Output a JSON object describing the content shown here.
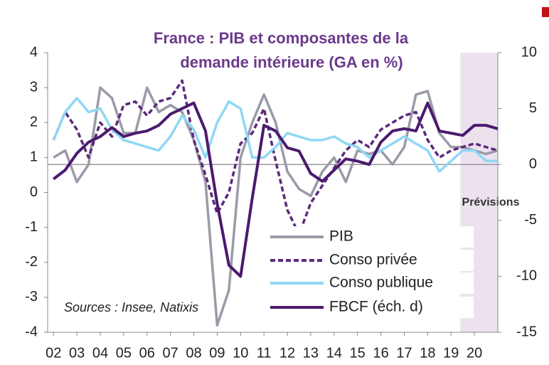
{
  "chart_data": {
    "type": "line",
    "title": [
      "France : PIB et composantes de la",
      "demande intérieure  (GA en %)"
    ],
    "annotations": {
      "sources": "Sources : Insee, Natixis",
      "forecast": "Prévisions"
    },
    "forecast_span": [
      2019.4,
      2021
    ],
    "x": [
      2002,
      2002.5,
      2003,
      2003.5,
      2004,
      2004.5,
      2005,
      2005.5,
      2006,
      2006.5,
      2007,
      2007.5,
      2008,
      2008.5,
      2009,
      2009.5,
      2010,
      2010.5,
      2011,
      2011.5,
      2012,
      2012.5,
      2013,
      2013.5,
      2014,
      2014.5,
      2015,
      2015.5,
      2016,
      2016.5,
      2017,
      2017.5,
      2018,
      2018.5,
      2019,
      2019.5,
      2020,
      2020.5,
      2021
    ],
    "xlim": [
      2001.75,
      2021
    ],
    "xticks": [
      {
        "value": 2002,
        "label": "02"
      },
      {
        "value": 2003,
        "label": "03"
      },
      {
        "value": 2004,
        "label": "04"
      },
      {
        "value": 2005,
        "label": "05"
      },
      {
        "value": 2006,
        "label": "06"
      },
      {
        "value": 2007,
        "label": "07"
      },
      {
        "value": 2008,
        "label": "08"
      },
      {
        "value": 2009,
        "label": "09"
      },
      {
        "value": 2010,
        "label": "10"
      },
      {
        "value": 2011,
        "label": "11"
      },
      {
        "value": 2012,
        "label": "12"
      },
      {
        "value": 2013,
        "label": "13"
      },
      {
        "value": 2014,
        "label": "14"
      },
      {
        "value": 2015,
        "label": "15"
      },
      {
        "value": 2016,
        "label": "16"
      },
      {
        "value": 2017,
        "label": "17"
      },
      {
        "value": 2018,
        "label": "18"
      },
      {
        "value": 2019,
        "label": "19"
      },
      {
        "value": 2020,
        "label": "20"
      }
    ],
    "ylim": [
      -4,
      4
    ],
    "yticks": [
      4,
      3,
      2,
      1,
      0,
      -1,
      -2,
      -3,
      -4
    ],
    "y2lim": [
      -15,
      10
    ],
    "y2ticks": [
      10,
      5,
      0,
      -5,
      -10,
      -15
    ],
    "series": [
      {
        "name": "PIB",
        "color": "#9a9aa8",
        "dashed": false,
        "values": [
          1.0,
          1.2,
          0.3,
          0.8,
          3.0,
          2.7,
          1.7,
          1.7,
          3.0,
          2.3,
          2.5,
          2.3,
          1.5,
          0.3,
          -3.8,
          -2.8,
          1.0,
          2.0,
          2.8,
          2.0,
          0.6,
          0.1,
          -0.1,
          0.6,
          1.0,
          0.3,
          1.2,
          1.1,
          1.2,
          0.8,
          1.3,
          2.8,
          2.9,
          1.7,
          1.3,
          1.3,
          1.2,
          1.1,
          1.2
        ]
      },
      {
        "name": "Conso privée",
        "color": "#5b2a7a",
        "dashed": true,
        "values": [
          1.5,
          2.3,
          1.8,
          1.0,
          2.0,
          1.6,
          2.5,
          2.6,
          2.2,
          2.6,
          2.7,
          3.2,
          1.5,
          0.5,
          -0.6,
          0.0,
          1.4,
          1.7,
          2.4,
          0.9,
          -0.5,
          -1.2,
          -0.3,
          0.2,
          0.7,
          1.2,
          1.5,
          1.3,
          1.8,
          2.0,
          2.2,
          2.3,
          1.5,
          1.0,
          1.2,
          1.3,
          1.4,
          1.3,
          1.2
        ]
      },
      {
        "name": "Conso publique",
        "color": "#8fd8f5",
        "dashed": false,
        "values": [
          1.5,
          2.3,
          2.7,
          2.3,
          2.4,
          1.8,
          1.5,
          1.4,
          1.3,
          1.2,
          1.6,
          2.2,
          1.8,
          1.0,
          2.0,
          2.6,
          2.4,
          1.0,
          1.0,
          1.3,
          1.7,
          1.6,
          1.5,
          1.5,
          1.6,
          1.4,
          1.3,
          1.0,
          1.2,
          1.4,
          1.6,
          1.4,
          1.2,
          0.6,
          0.9,
          1.2,
          1.2,
          0.9,
          0.9
        ]
      },
      {
        "name": "FBCF (éch. d)",
        "color": "#4b1a6e",
        "dashed": false,
        "axis": "y2",
        "values": [
          -1.3,
          -0.5,
          1.0,
          2.0,
          2.5,
          3.3,
          2.5,
          2.8,
          3.0,
          3.5,
          4.5,
          5.0,
          5.5,
          3.0,
          -3.5,
          -9.0,
          -10.0,
          -3.0,
          3.5,
          3.0,
          1.5,
          1.2,
          -0.8,
          -1.5,
          -0.5,
          0.5,
          0.3,
          0.0,
          2.0,
          3.0,
          3.2,
          3.0,
          5.5,
          3.0,
          2.8,
          2.6,
          3.5,
          3.5,
          3.2
        ]
      }
    ]
  }
}
